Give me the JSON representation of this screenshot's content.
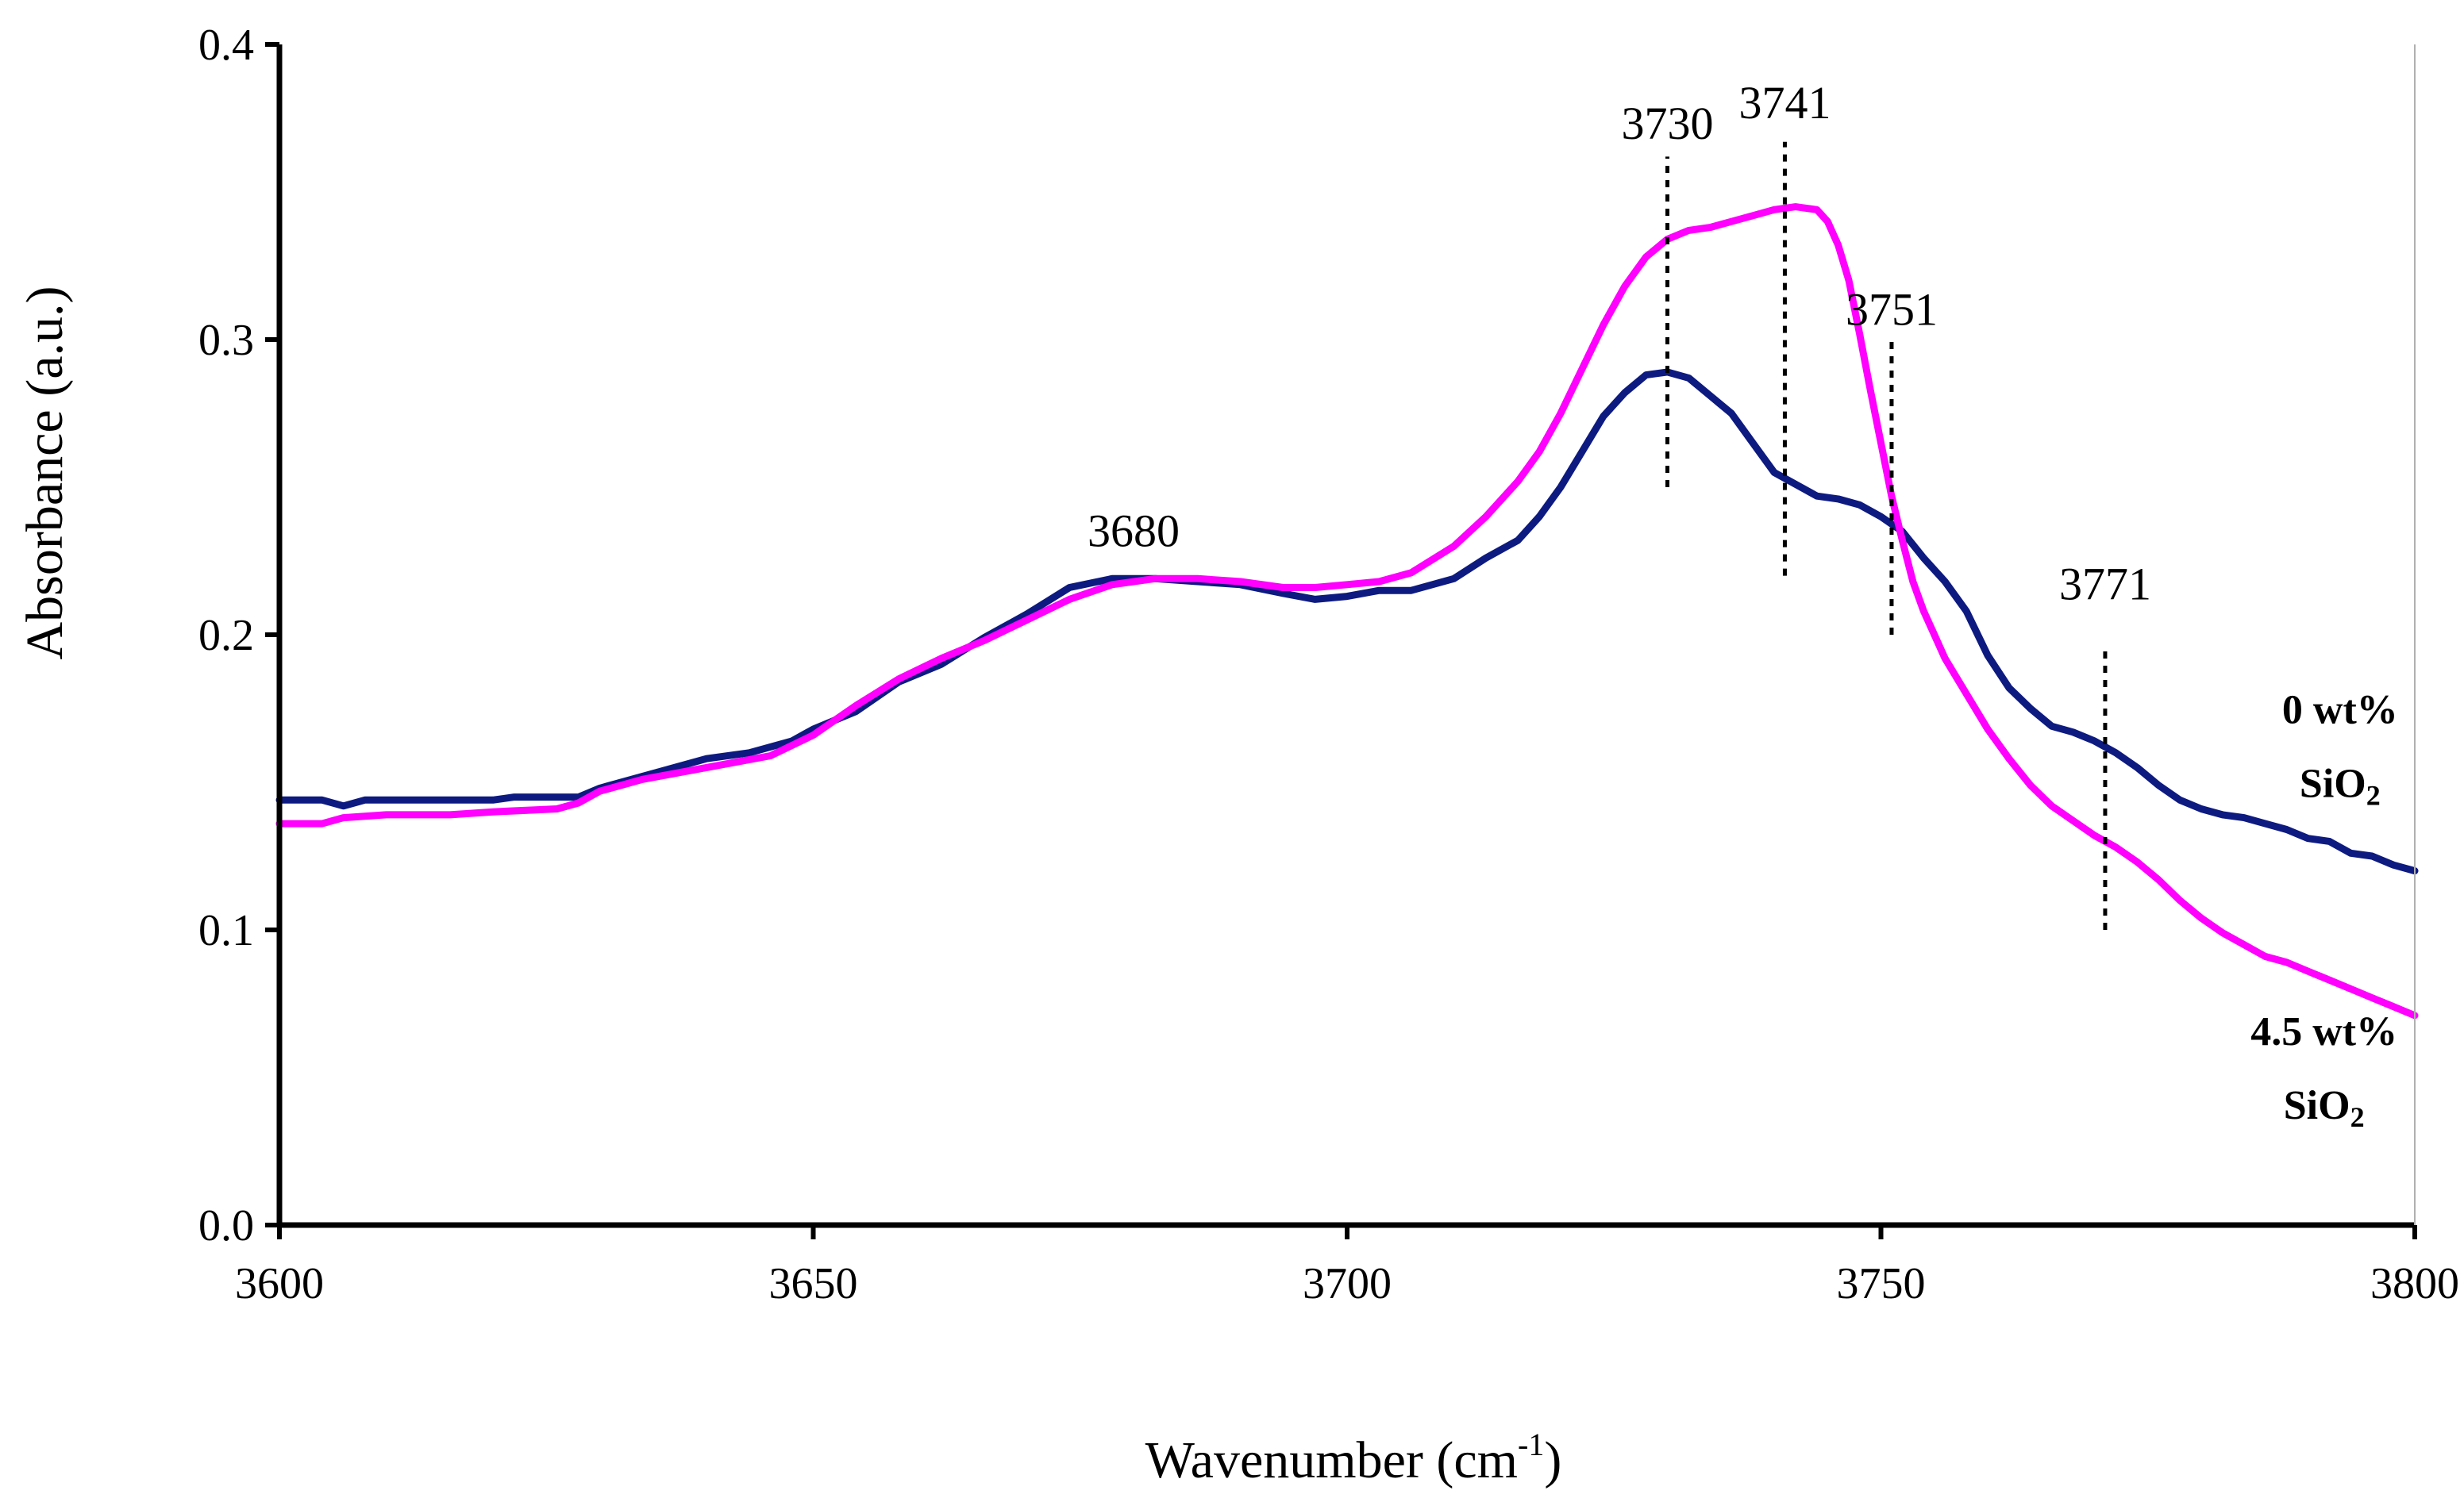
{
  "chart_data": {
    "type": "line",
    "title": "",
    "xlabel": "Wavenumber (cm",
    "xlabel_sup": "-1",
    "xlabel_close": ")",
    "ylabel": "Absorbance (a.u.)",
    "xlim": [
      3600,
      3800
    ],
    "ylim": [
      0.0,
      0.4
    ],
    "xticks": [
      3600,
      3650,
      3700,
      3750,
      3800
    ],
    "xtick_labels": [
      "3600",
      "3650",
      "3700",
      "3750",
      "3800"
    ],
    "yticks": [
      0.0,
      0.1,
      0.2,
      0.3,
      0.4
    ],
    "ytick_labels": [
      "0.0",
      "0.1",
      "0.2",
      "0.3",
      "0.4"
    ],
    "grid": false,
    "series": [
      {
        "name": "0 wt% SiO2",
        "label_line1": "0 wt%",
        "label_line2": "SiO",
        "label_sub": "2",
        "label_x": 3793,
        "label_y1": 0.17,
        "label_y2": 0.145,
        "color": "#0d1a80",
        "x": [
          3600,
          3604,
          3606,
          3608,
          3610,
          3620,
          3622,
          3624,
          3628,
          3630,
          3636,
          3640,
          3644,
          3648,
          3650,
          3654,
          3658,
          3662,
          3666,
          3670,
          3674,
          3678,
          3682,
          3686,
          3690,
          3694,
          3697,
          3700,
          3703,
          3706,
          3710,
          3713,
          3716,
          3718,
          3720,
          3722,
          3724,
          3726,
          3728,
          3730,
          3732,
          3734,
          3736,
          3738,
          3740,
          3742,
          3744,
          3746,
          3748,
          3750,
          3752,
          3754,
          3756,
          3758,
          3760,
          3762,
          3764,
          3766,
          3768,
          3770,
          3772,
          3774,
          3776,
          3778,
          3780,
          3782,
          3784,
          3786,
          3788,
          3790,
          3792,
          3794,
          3796,
          3798,
          3800
        ],
        "y": [
          0.144,
          0.144,
          0.142,
          0.144,
          0.144,
          0.144,
          0.145,
          0.145,
          0.145,
          0.148,
          0.154,
          0.158,
          0.16,
          0.164,
          0.168,
          0.174,
          0.184,
          0.19,
          0.199,
          0.207,
          0.216,
          0.219,
          0.219,
          0.218,
          0.217,
          0.214,
          0.212,
          0.213,
          0.215,
          0.215,
          0.219,
          0.226,
          0.232,
          0.24,
          0.25,
          0.262,
          0.274,
          0.282,
          0.288,
          0.289,
          0.287,
          0.281,
          0.275,
          0.265,
          0.255,
          0.251,
          0.247,
          0.246,
          0.244,
          0.24,
          0.235,
          0.226,
          0.218,
          0.208,
          0.193,
          0.182,
          0.175,
          0.169,
          0.167,
          0.164,
          0.16,
          0.155,
          0.149,
          0.144,
          0.141,
          0.139,
          0.138,
          0.136,
          0.134,
          0.131,
          0.13,
          0.126,
          0.125,
          0.122,
          0.12
        ]
      },
      {
        "name": "4.5 wt% SiO2",
        "label_line1": "4.5 wt%",
        "label_line2": "SiO",
        "label_sub": "2",
        "label_x": 3791.5,
        "label_y1": 0.061,
        "label_y2": 0.036,
        "color": "#ff00ff",
        "x": [
          3600,
          3604,
          3606,
          3610,
          3616,
          3620,
          3626,
          3628,
          3630,
          3634,
          3640,
          3646,
          3650,
          3654,
          3658,
          3662,
          3666,
          3670,
          3674,
          3678,
          3682,
          3686,
          3690,
          3694,
          3697,
          3700,
          3703,
          3706,
          3710,
          3713,
          3716,
          3718,
          3720,
          3722,
          3724,
          3726,
          3728,
          3730,
          3732,
          3734,
          3736,
          3738,
          3740,
          3742,
          3744,
          3745,
          3746,
          3747,
          3748,
          3749,
          3750,
          3751,
          3752,
          3753,
          3754,
          3755,
          3756,
          3758,
          3760,
          3762,
          3764,
          3766,
          3768,
          3770,
          3772,
          3774,
          3776,
          3778,
          3780,
          3782,
          3784,
          3786,
          3788,
          3790,
          3792,
          3794,
          3796,
          3798,
          3800
        ],
        "y": [
          0.136,
          0.136,
          0.138,
          0.139,
          0.139,
          0.14,
          0.141,
          0.143,
          0.147,
          0.151,
          0.155,
          0.159,
          0.166,
          0.176,
          0.185,
          0.192,
          0.198,
          0.205,
          0.212,
          0.217,
          0.219,
          0.219,
          0.218,
          0.216,
          0.216,
          0.217,
          0.218,
          0.221,
          0.23,
          0.24,
          0.252,
          0.262,
          0.275,
          0.29,
          0.305,
          0.318,
          0.328,
          0.334,
          0.337,
          0.338,
          0.34,
          0.342,
          0.344,
          0.345,
          0.344,
          0.34,
          0.332,
          0.32,
          0.302,
          0.283,
          0.265,
          0.247,
          0.232,
          0.218,
          0.208,
          0.2,
          0.192,
          0.18,
          0.168,
          0.158,
          0.149,
          0.142,
          0.137,
          0.132,
          0.128,
          0.123,
          0.117,
          0.11,
          0.104,
          0.099,
          0.095,
          0.091,
          0.089,
          0.086,
          0.083,
          0.08,
          0.077,
          0.074,
          0.071
        ]
      }
    ],
    "annotations": [
      {
        "label": "3680",
        "x": 3680,
        "y": 0.23,
        "line": false
      },
      {
        "label": "3730",
        "x": 3730,
        "y": 0.368,
        "line": true,
        "line_from": 0.25,
        "line_to": 0.362
      },
      {
        "label": "3741",
        "x": 3741,
        "y": 0.375,
        "line": true,
        "line_from": 0.22,
        "line_to": 0.367
      },
      {
        "label": "3751",
        "x": 3751,
        "y": 0.305,
        "line": true,
        "line_from": 0.2,
        "line_to": 0.3
      },
      {
        "label": "3771",
        "x": 3771,
        "y": 0.212,
        "line": true,
        "line_from": 0.1,
        "line_to": 0.195
      }
    ]
  }
}
